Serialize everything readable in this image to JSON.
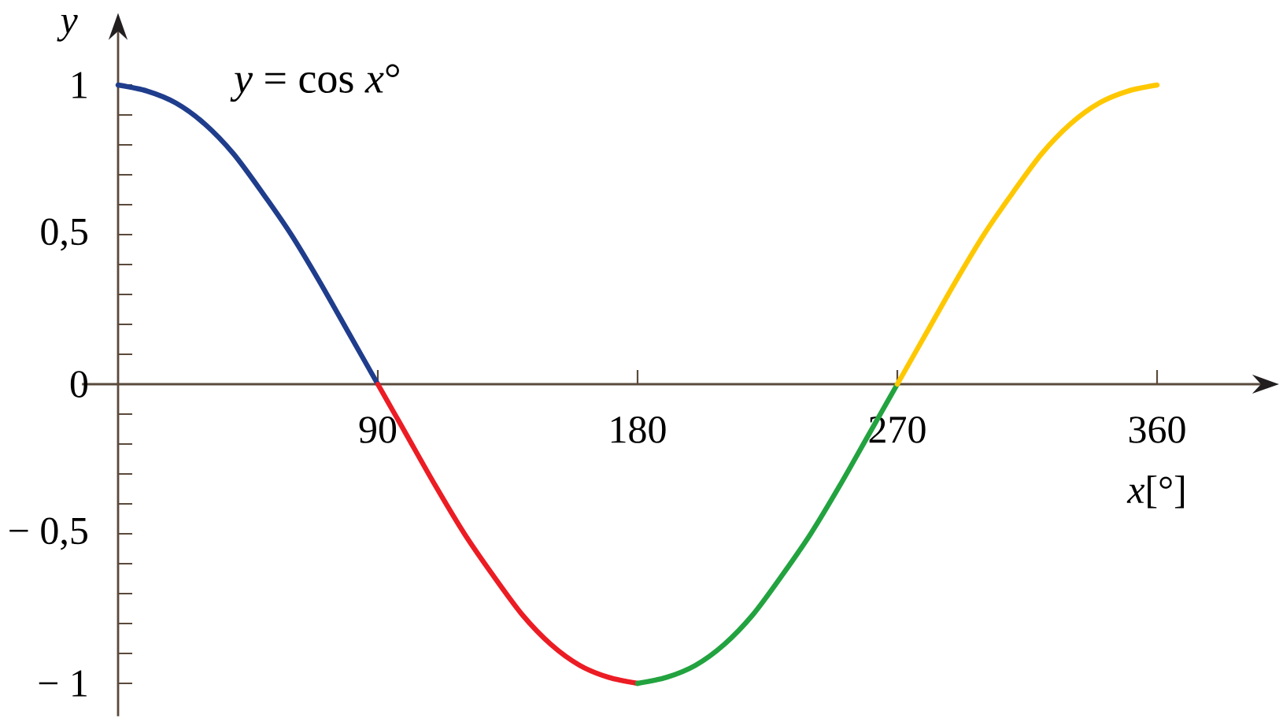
{
  "chart_data": {
    "type": "line",
    "annotations": [
      "*y* = cos *x*°"
    ],
    "xlabel": "*x*[°]",
    "ylabel": "y",
    "xlim": [
      -12.5,
      396
    ],
    "ylim": [
      -1.11,
      1.18
    ],
    "xticks": [
      90,
      180,
      270,
      360
    ],
    "yticks": [
      {
        "value": -1,
        "label": "− 1"
      },
      {
        "value": -0.9,
        "label": null
      },
      {
        "value": -0.8,
        "label": null
      },
      {
        "value": -0.7,
        "label": null
      },
      {
        "value": -0.6,
        "label": null
      },
      {
        "value": -0.5,
        "label": "− 0,5"
      },
      {
        "value": -0.4,
        "label": null
      },
      {
        "value": -0.3,
        "label": null
      },
      {
        "value": -0.2,
        "label": null
      },
      {
        "value": -0.1,
        "label": null
      },
      0,
      {
        "value": 0.1,
        "label": null
      },
      {
        "value": 0.2,
        "label": null
      },
      {
        "value": 0.3,
        "label": null
      },
      {
        "value": 0.4,
        "label": null
      },
      {
        "value": 0.5,
        "label": "0,5"
      },
      {
        "value": 0.6,
        "label": null
      },
      {
        "value": 0.7,
        "label": null
      },
      {
        "value": 0.8,
        "label": null
      },
      {
        "value": 0.9,
        "label": null
      },
      1
    ],
    "marker": "none",
    "line_style": "solid",
    "series": [
      {
        "color": "#1f3d8c",
        "x": [
          0,
          10,
          20,
          30,
          40,
          50,
          60,
          70,
          80,
          90
        ],
        "values": [
          1,
          0.98,
          0.94,
          0.87,
          0.77,
          0.64,
          0.5,
          0.34,
          0.17,
          0
        ]
      },
      {
        "color": "#ec1c24",
        "x": [
          90,
          100,
          110,
          120,
          130,
          140,
          150,
          160,
          170,
          180
        ],
        "values": [
          0,
          -0.17,
          -0.34,
          -0.5,
          -0.64,
          -0.77,
          -0.87,
          -0.94,
          -0.98,
          -1
        ]
      },
      {
        "color": "#22a33f",
        "x": [
          180,
          190,
          200,
          210,
          220,
          230,
          240,
          250,
          260,
          270
        ],
        "values": [
          -1,
          -0.98,
          -0.94,
          -0.87,
          -0.77,
          -0.64,
          -0.5,
          -0.34,
          -0.17,
          0
        ]
      },
      {
        "color": "#fec800",
        "x": [
          270,
          280,
          290,
          300,
          310,
          320,
          330,
          340,
          350,
          360
        ],
        "values": [
          0,
          0.17,
          0.34,
          0.5,
          0.64,
          0.77,
          0.87,
          0.94,
          0.98,
          1
        ]
      }
    ]
  }
}
